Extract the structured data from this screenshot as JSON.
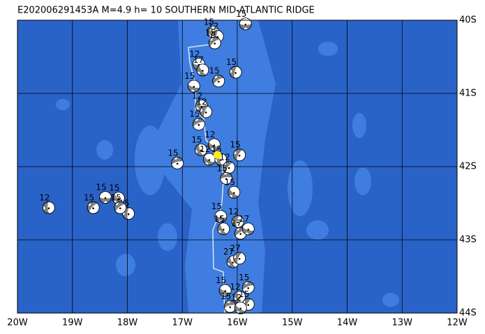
{
  "title": "E202006291453A M=4.9 h= 10 SOUTHERN MID-ATLANTIC RIDGE",
  "map": {
    "xlim": [
      -20,
      -12
    ],
    "ylim": [
      -44,
      -40
    ],
    "xticks": [
      {
        "value": -20,
        "label": "20W"
      },
      {
        "value": -19,
        "label": "19W"
      },
      {
        "value": -18,
        "label": "18W"
      },
      {
        "value": -17,
        "label": "17W"
      },
      {
        "value": -16,
        "label": "16W"
      },
      {
        "value": -15,
        "label": "15W"
      },
      {
        "value": -14,
        "label": "14W"
      },
      {
        "value": -13,
        "label": "13W"
      },
      {
        "value": -12,
        "label": "12W"
      }
    ],
    "yticks": [
      {
        "value": -40,
        "label": "40S"
      },
      {
        "value": -41,
        "label": "41S"
      },
      {
        "value": -42,
        "label": "42S"
      },
      {
        "value": -43,
        "label": "43S"
      },
      {
        "value": -44,
        "label": "44S"
      }
    ]
  },
  "epicenter": {
    "lon": -16.36,
    "lat": -41.84
  },
  "events": [
    {
      "lon": -15.85,
      "lat": -40.05,
      "label": "15"
    },
    {
      "lon": -16.44,
      "lat": -40.16,
      "label": "15"
    },
    {
      "lon": -16.36,
      "lat": -40.22,
      "label": "12"
    },
    {
      "lon": -16.41,
      "lat": -40.31,
      "label": "15"
    },
    {
      "lon": -16.7,
      "lat": -40.6,
      "label": "12"
    },
    {
      "lon": -16.63,
      "lat": -40.68,
      "label": "17"
    },
    {
      "lon": -16.03,
      "lat": -40.71,
      "label": "15"
    },
    {
      "lon": -16.34,
      "lat": -40.83,
      "label": "15"
    },
    {
      "lon": -16.79,
      "lat": -40.9,
      "label": "15"
    },
    {
      "lon": -16.65,
      "lat": -41.17,
      "label": "12"
    },
    {
      "lon": -16.57,
      "lat": -41.25,
      "label": "12"
    },
    {
      "lon": -16.7,
      "lat": -41.42,
      "label": "15"
    },
    {
      "lon": -16.42,
      "lat": -41.7,
      "label": "12"
    },
    {
      "lon": -16.66,
      "lat": -41.77,
      "label": "15"
    },
    {
      "lon": -15.96,
      "lat": -41.84,
      "label": "15"
    },
    {
      "lon": -17.09,
      "lat": -41.95,
      "label": "15"
    },
    {
      "lon": -16.51,
      "lat": -41.9,
      "label": "12"
    },
    {
      "lon": -16.3,
      "lat": -41.9,
      "label": "15"
    },
    {
      "lon": -16.15,
      "lat": -42.01,
      "label": "12"
    },
    {
      "lon": -16.2,
      "lat": -42.16,
      "label": "15"
    },
    {
      "lon": -16.06,
      "lat": -42.35,
      "label": "15"
    },
    {
      "lon": -19.43,
      "lat": -42.56,
      "label": "12"
    },
    {
      "lon": -18.62,
      "lat": -42.56,
      "label": "15"
    },
    {
      "lon": -18.4,
      "lat": -42.42,
      "label": "15"
    },
    {
      "lon": -18.16,
      "lat": -42.43,
      "label": "15"
    },
    {
      "lon": -17.98,
      "lat": -42.64,
      "label": "15"
    },
    {
      "lon": -18.13,
      "lat": -42.56,
      "label": "15"
    },
    {
      "lon": -16.3,
      "lat": -42.68,
      "label": "15"
    },
    {
      "lon": -16.25,
      "lat": -42.85,
      "label": "15"
    },
    {
      "lon": -15.99,
      "lat": -42.75,
      "label": "12"
    },
    {
      "lon": -15.94,
      "lat": -42.91,
      "label": "17"
    },
    {
      "lon": -15.8,
      "lat": -42.85,
      "label": "17"
    },
    {
      "lon": -16.08,
      "lat": -43.3,
      "label": "27"
    },
    {
      "lon": -15.96,
      "lat": -43.25,
      "label": "27"
    },
    {
      "lon": -15.8,
      "lat": -43.65,
      "label": "15"
    },
    {
      "lon": -16.22,
      "lat": -43.69,
      "label": "15"
    },
    {
      "lon": -15.96,
      "lat": -43.78,
      "label": "12"
    },
    {
      "lon": -15.8,
      "lat": -43.88,
      "label": "15"
    },
    {
      "lon": -16.13,
      "lat": -43.91,
      "label": "15"
    },
    {
      "lon": -15.94,
      "lat": -43.93,
      "label": "12"
    }
  ]
}
